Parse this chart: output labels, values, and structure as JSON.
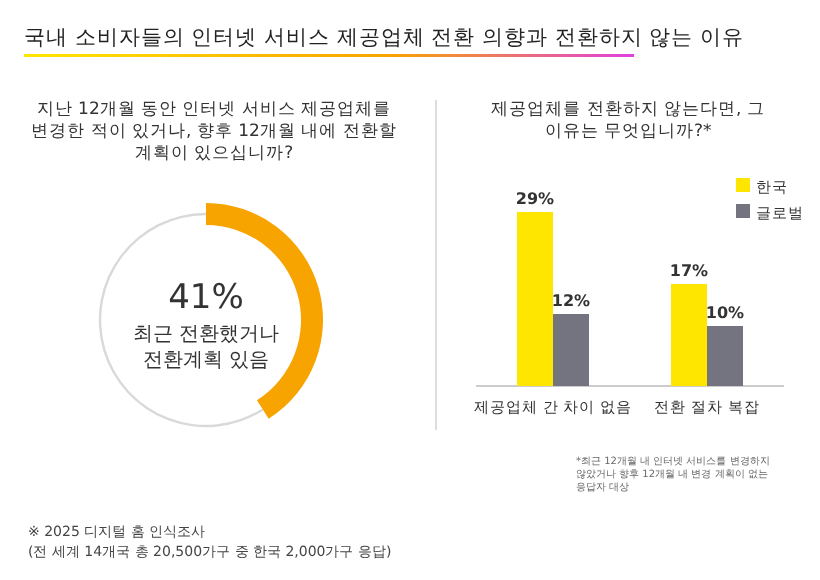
{
  "chart_data": [
    {
      "type": "donut",
      "title": "국내 소비자들의 인터넷 서비스 제공업체 전환 의향과 전환하지 않는 이유",
      "subtitle": "지난 12개월 동안 인터넷 서비스 제공업체를 변경한 적이 있거나, 향후 12개월 내에 전환할 계획이 있으십니까?",
      "categories": [
        "최근 전환했거나 전환계획 있음",
        null
      ],
      "values": [
        41,
        59
      ],
      "colors": [
        "#f7a400",
        "#d9d9d9"
      ],
      "value_labels": [
        "41%",
        null
      ],
      "annotations": [
        "※ 2025 디지털 홈 인식조사",
        "(전 세계 14개국 총 20,500가구 중 한국 2,000가구 응답)"
      ]
    },
    {
      "type": "bar",
      "title": "제공업체를 전환하지 않는다면, 그 이유는 무엇입니까?*",
      "categories": [
        "제공업체 간 차이 없음",
        "전환 절차 복잡"
      ],
      "series": [
        {
          "name": "한국",
          "color": "#ffe600",
          "values": [
            29,
            17
          ],
          "value_labels": [
            "29%",
            "17%"
          ]
        },
        {
          "name": "글로벌",
          "color": "#747480",
          "values": [
            12,
            10
          ],
          "value_labels": [
            "12%",
            "10%"
          ]
        }
      ],
      "legend": "top right",
      "annotations": [
        "*최근 12개월 내 인터넷 서비스를 변경하지 않았거나 향후 12개월 내 변경 계획이 없는 응답자 대상"
      ]
    }
  ]
}
